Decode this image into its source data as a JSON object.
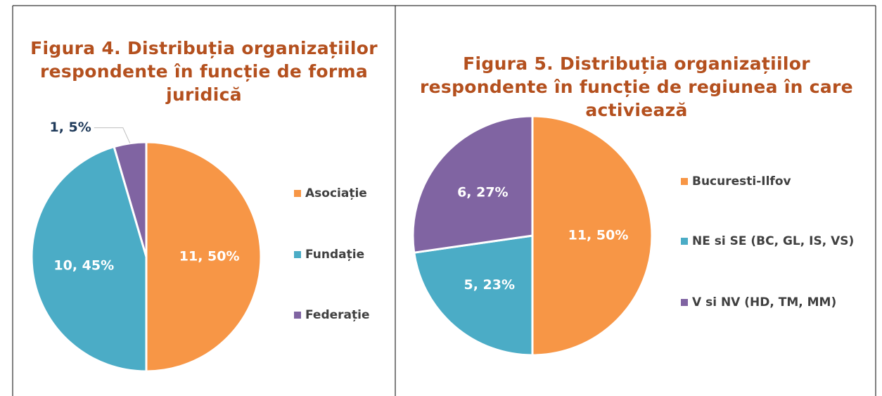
{
  "chart_data": [
    {
      "type": "pie",
      "title": "Figura 4. Distribuția organizațiilor respondente în funcție de forma juridică",
      "categories": [
        "Asociație",
        "Fundație",
        "Federație"
      ],
      "values": [
        11,
        10,
        1
      ],
      "value_labels": [
        "11, 50%",
        "10, 45%",
        "1, 5%"
      ],
      "colors": [
        "#F79646",
        "#4BACC6",
        "#8064A2"
      ],
      "legend": "right"
    },
    {
      "type": "pie",
      "title": "Figura 5. Distribuția organizațiilor respondente în funcție de regiunea în care activiează",
      "categories": [
        "Bucuresti-Ilfov",
        "NE si SE (BC, GL, IS, VS)",
        "V si NV (HD, TM, MM)"
      ],
      "values": [
        11,
        5,
        6
      ],
      "value_labels": [
        "11, 50%",
        "5, 23%",
        "6, 27%"
      ],
      "colors": [
        "#F79646",
        "#4BACC6",
        "#8064A2"
      ],
      "legend": "right"
    }
  ]
}
